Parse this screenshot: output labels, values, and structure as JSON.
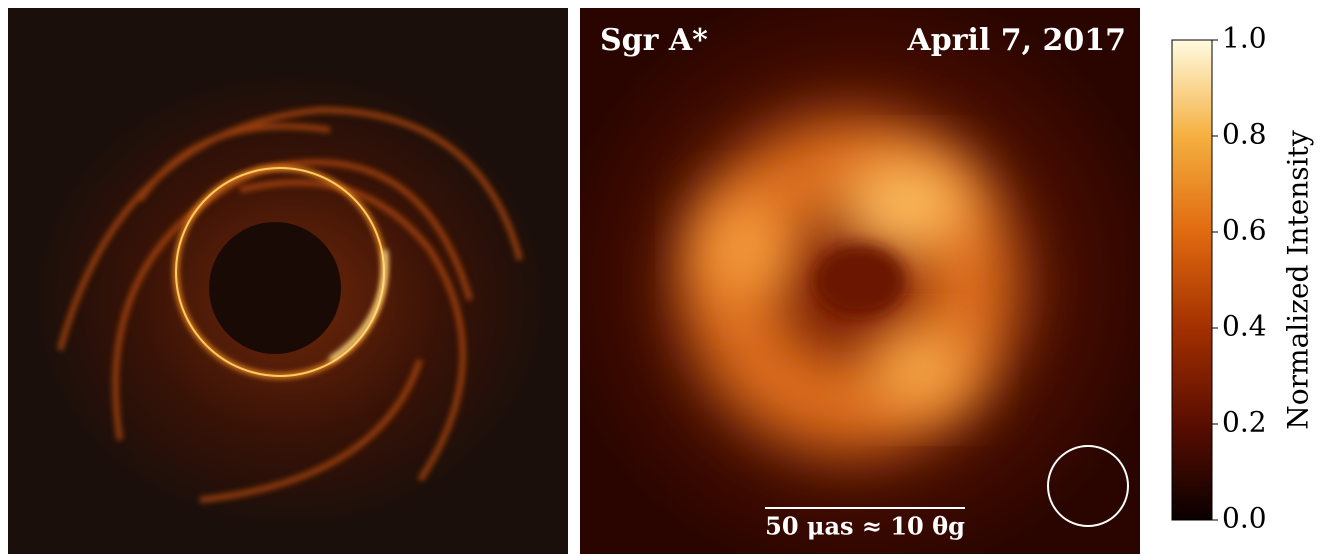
{
  "panels": [
    {
      "kind": "simulation"
    },
    {
      "title": "Sgr A*",
      "date": "April 7, 2017",
      "scale_bar": "50 μas ≈ 10 θg"
    }
  ],
  "colorbar": {
    "label": "Normalized Intensity",
    "lim": [
      0,
      1
    ],
    "ticks": [
      {
        "value": 0,
        "label": "0.0"
      },
      {
        "value": 0.2,
        "label": "0.2"
      },
      {
        "value": 0.4,
        "label": "0.4"
      },
      {
        "value": 0.6,
        "label": "0.6"
      },
      {
        "value": 0.8,
        "label": "0.8"
      },
      {
        "value": 1,
        "label": "1.0"
      }
    ]
  }
}
